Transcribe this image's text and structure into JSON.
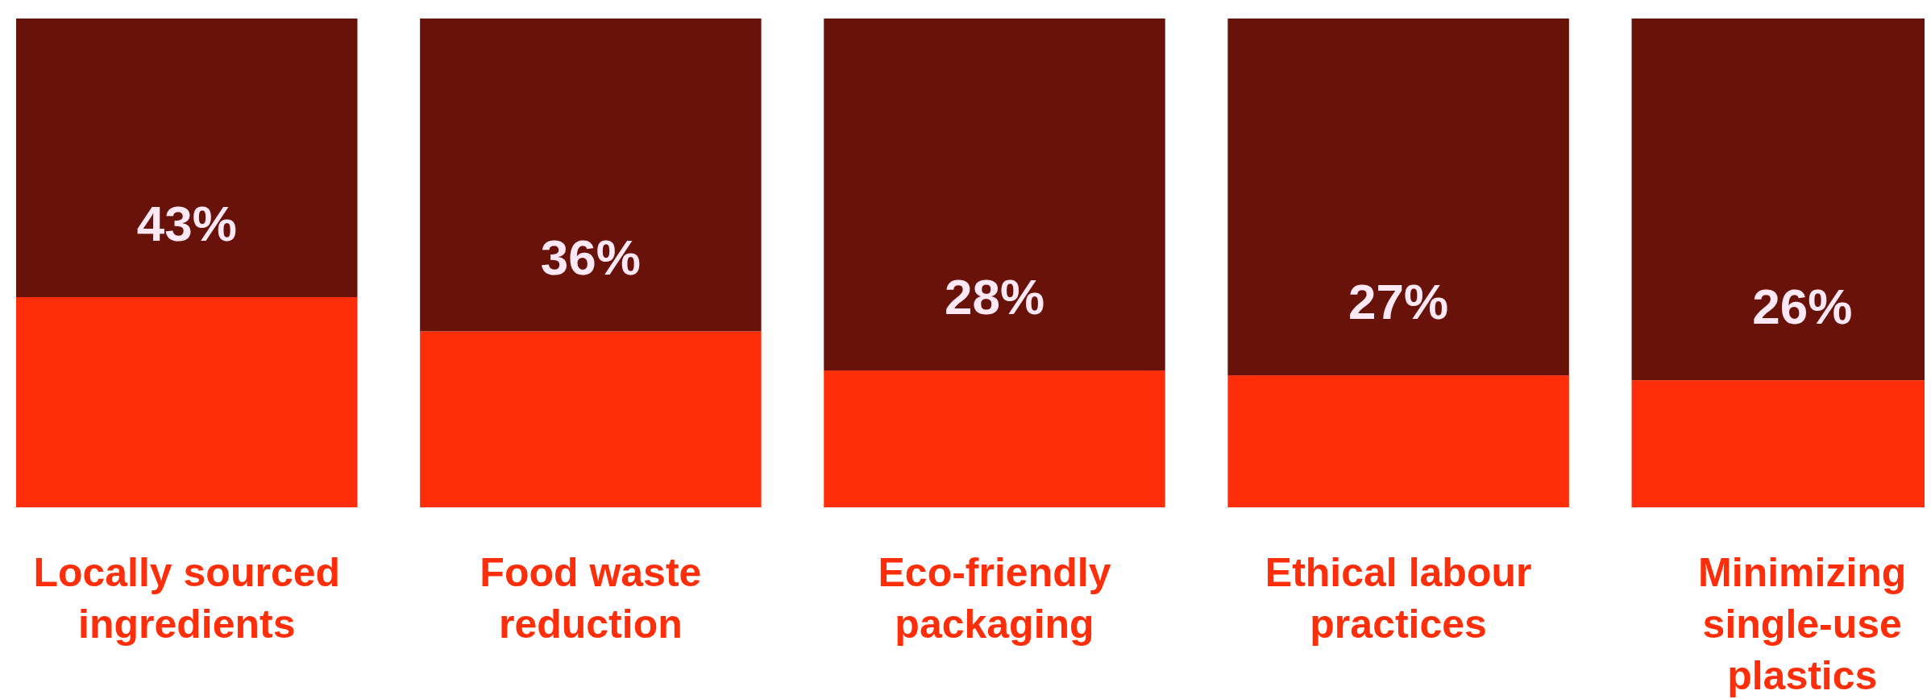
{
  "chart_data": {
    "type": "bar",
    "stacked": true,
    "categories": [
      "Locally sourced ingredients",
      "Food waste reduction",
      "Eco-friendly packaging",
      "Ethical labour practices",
      "Minimizing single-use plastics"
    ],
    "series": [
      {
        "color": "#ff2e0a",
        "values": [
          43,
          36,
          28,
          27,
          26
        ],
        "value_labels": [
          "43%",
          "36%",
          "28%",
          "27%",
          "26%"
        ]
      },
      {
        "color": "#68120a",
        "values": [
          57,
          64,
          72,
          73,
          74
        ]
      }
    ],
    "ylim": [
      0,
      100
    ],
    "tick_labels": "x"
  }
}
